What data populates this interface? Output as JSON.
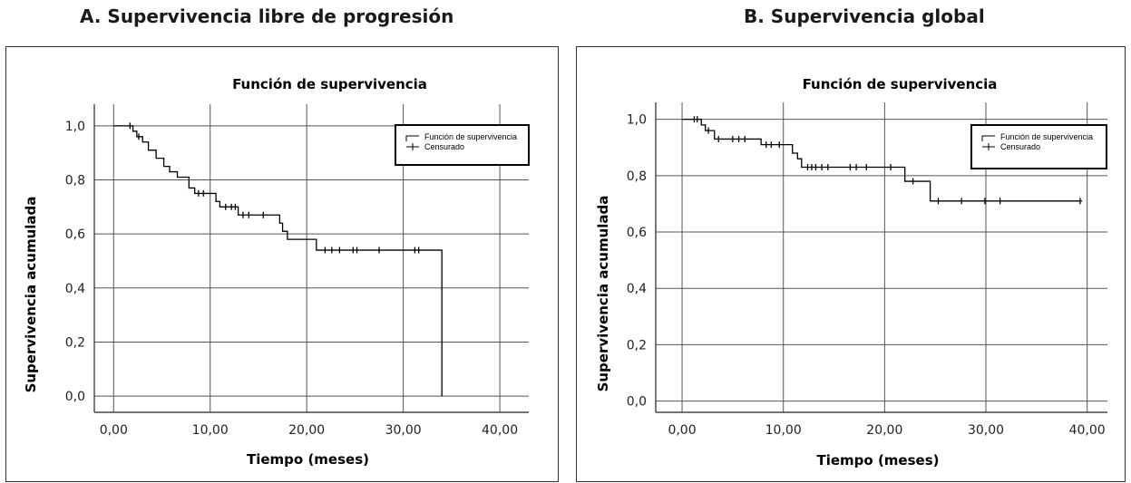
{
  "figure": {
    "panel_a_title": "A. Supervivencia libre de progresión",
    "panel_b_title": "B. Supervivencia global"
  },
  "colors": {
    "line": "#000000",
    "grid": "#555555",
    "frame": "#333333"
  },
  "chart_data": [
    {
      "type": "line",
      "panel": "A",
      "title": "Función de supervivencia",
      "xlabel": "Tiempo (meses)",
      "ylabel": "Supervivencia acumulada",
      "xlim": [
        -2,
        43
      ],
      "ylim": [
        -0.06,
        1.08
      ],
      "xticks": [
        0,
        10,
        20,
        30,
        40
      ],
      "xtick_labels": [
        "0,00",
        "10,00",
        "20,00",
        "30,00",
        "40,00"
      ],
      "yticks": [
        0,
        0.2,
        0.4,
        0.6,
        0.8,
        1.0
      ],
      "ytick_labels": [
        "0,0",
        "0,2",
        "0,4",
        "0,6",
        "0,8",
        "1,0"
      ],
      "grid": true,
      "legend_position": "top-right",
      "legend": [
        "Función de supervivencia",
        "Censurado"
      ],
      "series": [
        {
          "name": "Función de supervivencia",
          "step": [
            [
              0,
              1.0
            ],
            [
              2.0,
              0.98
            ],
            [
              2.4,
              0.96
            ],
            [
              3.0,
              0.94
            ],
            [
              3.6,
              0.91
            ],
            [
              4.4,
              0.88
            ],
            [
              5.2,
              0.85
            ],
            [
              5.8,
              0.83
            ],
            [
              6.6,
              0.81
            ],
            [
              7.8,
              0.77
            ],
            [
              8.4,
              0.75
            ],
            [
              10.6,
              0.72
            ],
            [
              11.0,
              0.7
            ],
            [
              12.9,
              0.67
            ],
            [
              17.2,
              0.64
            ],
            [
              17.5,
              0.61
            ],
            [
              18.0,
              0.58
            ],
            [
              21.0,
              0.54
            ],
            [
              34.0,
              0.0
            ]
          ],
          "end_time": 34.0
        },
        {
          "name": "Censurado",
          "points": [
            [
              1.7,
              1.0
            ],
            [
              2.6,
              0.96
            ],
            [
              8.8,
              0.75
            ],
            [
              9.3,
              0.75
            ],
            [
              11.6,
              0.7
            ],
            [
              12.2,
              0.7
            ],
            [
              12.6,
              0.7
            ],
            [
              13.4,
              0.67
            ],
            [
              14.0,
              0.67
            ],
            [
              15.5,
              0.67
            ],
            [
              21.9,
              0.54
            ],
            [
              22.6,
              0.54
            ],
            [
              23.4,
              0.54
            ],
            [
              24.8,
              0.54
            ],
            [
              25.2,
              0.54
            ],
            [
              27.5,
              0.54
            ],
            [
              31.2,
              0.54
            ],
            [
              31.6,
              0.54
            ]
          ]
        }
      ]
    },
    {
      "type": "line",
      "panel": "B",
      "title": "Función de supervivencia",
      "xlabel": "Tiempo (meses)",
      "ylabel": "Supervivencia acumulada",
      "xlim": [
        -2.6,
        42
      ],
      "ylim": [
        -0.04,
        1.06
      ],
      "xticks": [
        0,
        10,
        20,
        30,
        40
      ],
      "xtick_labels": [
        "0,00",
        "10,00",
        "20,00",
        "30,00",
        "40,00"
      ],
      "yticks": [
        0,
        0.2,
        0.4,
        0.6,
        0.8,
        1.0
      ],
      "ytick_labels": [
        "0,0",
        "0,2",
        "0,4",
        "0,6",
        "0,8",
        "1,0"
      ],
      "grid": true,
      "legend_position": "top-right",
      "legend": [
        "Función de supervivencia",
        "Censurado"
      ],
      "series": [
        {
          "name": "Función de supervivencia",
          "step": [
            [
              0,
              1.0
            ],
            [
              1.9,
              0.98
            ],
            [
              2.3,
              0.96
            ],
            [
              3.2,
              0.93
            ],
            [
              7.8,
              0.91
            ],
            [
              10.9,
              0.88
            ],
            [
              11.4,
              0.86
            ],
            [
              11.8,
              0.83
            ],
            [
              22.0,
              0.78
            ],
            [
              24.5,
              0.71
            ]
          ],
          "end_time": 39.5
        },
        {
          "name": "Censurado",
          "points": [
            [
              1.2,
              1.0
            ],
            [
              1.5,
              1.0
            ],
            [
              2.6,
              0.96
            ],
            [
              3.6,
              0.93
            ],
            [
              5.0,
              0.93
            ],
            [
              5.6,
              0.93
            ],
            [
              6.2,
              0.93
            ],
            [
              8.3,
              0.91
            ],
            [
              8.8,
              0.91
            ],
            [
              9.6,
              0.91
            ],
            [
              12.4,
              0.83
            ],
            [
              12.8,
              0.83
            ],
            [
              13.2,
              0.83
            ],
            [
              13.8,
              0.83
            ],
            [
              14.4,
              0.83
            ],
            [
              16.6,
              0.83
            ],
            [
              17.2,
              0.83
            ],
            [
              18.2,
              0.83
            ],
            [
              20.6,
              0.83
            ],
            [
              22.8,
              0.78
            ],
            [
              25.3,
              0.71
            ],
            [
              27.6,
              0.71
            ],
            [
              29.9,
              0.71
            ],
            [
              31.4,
              0.71
            ],
            [
              39.3,
              0.71
            ]
          ]
        }
      ]
    }
  ]
}
